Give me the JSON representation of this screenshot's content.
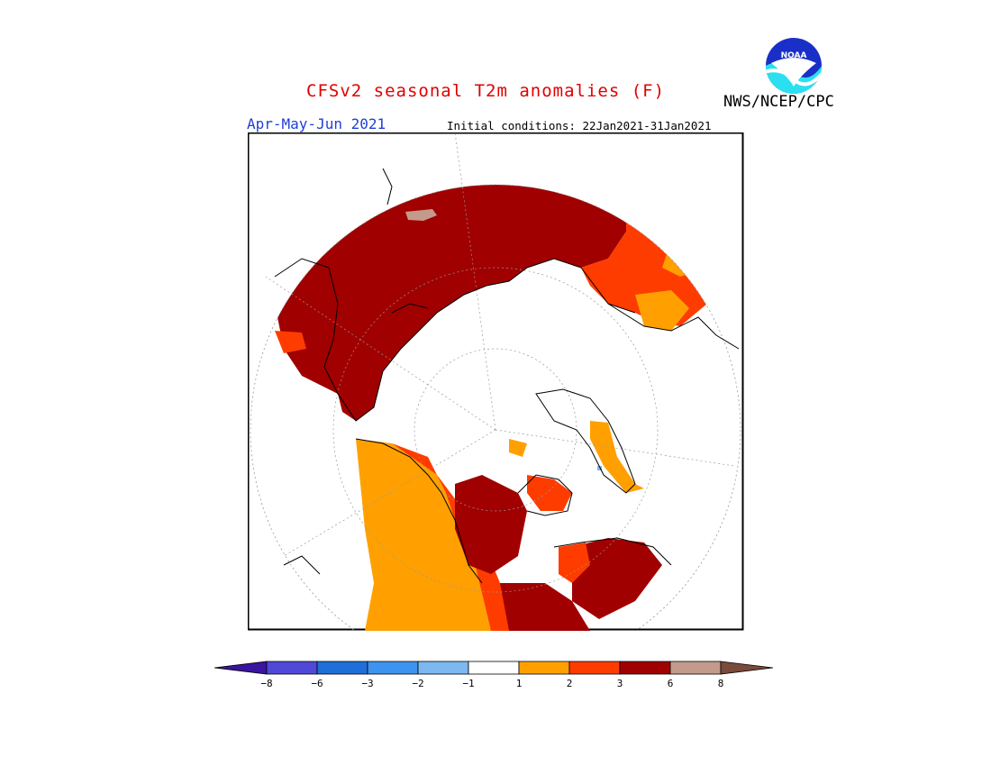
{
  "header": {
    "title": "CFSv2 seasonal T2m anomalies (F)",
    "organization": "NWS/NCEP/CPC",
    "period": "Apr-May-Jun 2021",
    "initial_conditions": "Initial conditions: 22Jan2021-31Jan2021"
  },
  "logo": {
    "text": "NOAA",
    "icon": "noaa-logo"
  },
  "legend": {
    "ticks": [
      "−8",
      "−6",
      "−3",
      "−2",
      "−1",
      "1",
      "2",
      "3",
      "6",
      "8"
    ],
    "colors": [
      "#3a14a0",
      "#4f48d8",
      "#1f6fd8",
      "#3d93f0",
      "#7db8f0",
      "#ffffff",
      "#ffa000",
      "#ff3c00",
      "#a00000",
      "#c49a8c",
      "#7a4a3a"
    ]
  },
  "map_colors": {
    "anom_1_2": "#ffa000",
    "anom_2_3": "#ff3c00",
    "anom_3_6": "#a00000",
    "anom_6_8": "#c49a8c",
    "neg_1_2": "#7db8f0"
  }
}
